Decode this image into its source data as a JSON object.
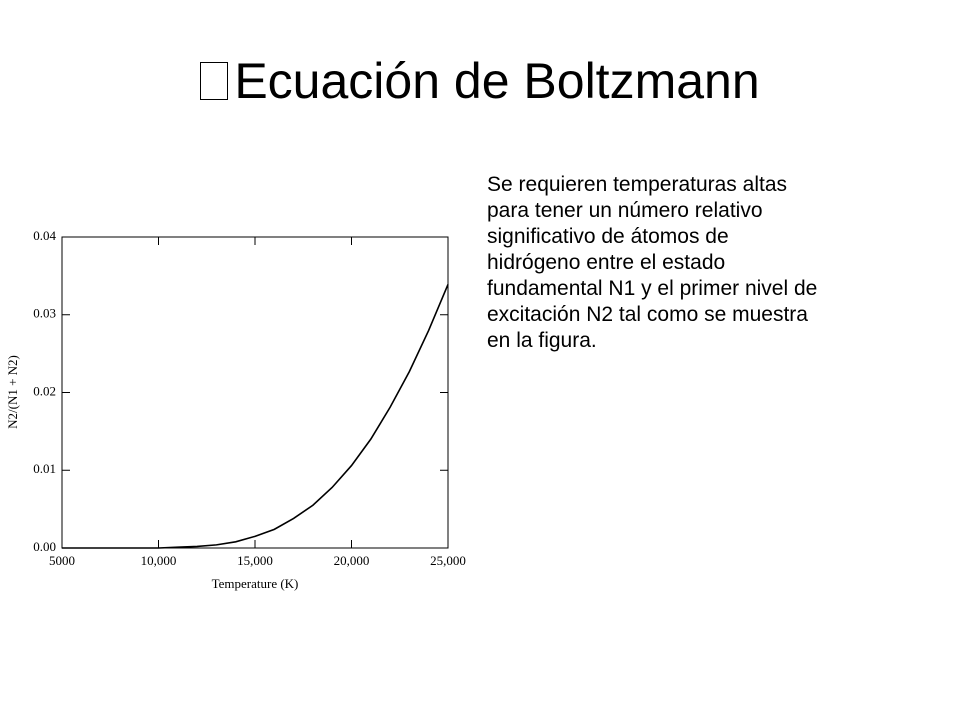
{
  "slide": {
    "title": "Ecuación de Boltzmann",
    "body_lines": [
      "Se requieren temperaturas altas",
      "para tener un número relativo",
      "significativo de átomos de",
      "hidrógeno entre el estado",
      "fundamental N1 y el primer nivel de",
      "excitación N2 tal como se muestra",
      "en la figura."
    ]
  },
  "chart_data": {
    "type": "line",
    "x_label": "Temperature (K)",
    "y_label": "N2/(N1 + N2)",
    "x": [
      5000,
      6000,
      7000,
      8000,
      9000,
      10000,
      11000,
      12000,
      13000,
      14000,
      15000,
      16000,
      17000,
      18000,
      19000,
      20000,
      21000,
      22000,
      23000,
      24000,
      25000
    ],
    "series": [
      {
        "color": "#000000",
        "values": [
          0,
          0,
          0,
          0,
          0,
          0,
          0.0001,
          0.0002,
          0.0004,
          0.0008,
          0.0015,
          0.0024,
          0.0038,
          0.0055,
          0.0078,
          0.0106,
          0.014,
          0.0181,
          0.0227,
          0.028,
          0.0339
        ]
      }
    ],
    "xlim": [
      5000,
      25000
    ],
    "xticks": [
      5000,
      {
        "value": 10000,
        "label": "10,000"
      },
      {
        "value": 15000,
        "label": "15,000"
      },
      {
        "value": 20000,
        "label": "20,000"
      },
      {
        "value": 25000,
        "label": "25,000"
      }
    ],
    "ylim": [
      0,
      0.04
    ],
    "yticks": [
      {
        "value": 0,
        "label": "0.00"
      },
      0.01,
      0.02,
      0.03,
      0.04
    ],
    "grid": false
  }
}
